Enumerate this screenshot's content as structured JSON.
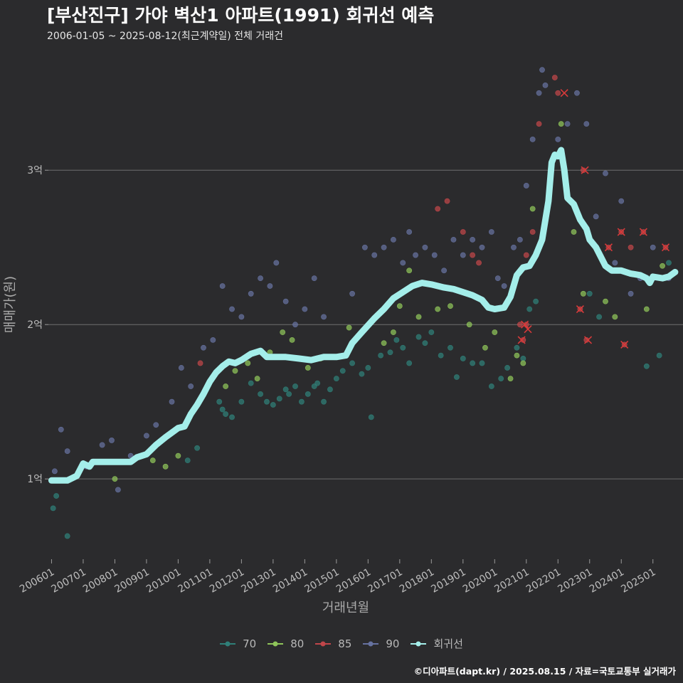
{
  "header": {
    "title": "[부산진구] 가야 벽산1 아파트(1991) 회귀선 예측",
    "subtitle": "2006-01-05 ~ 2025-08-12(최근계약일) 전체 거래건"
  },
  "caption": "©디아파트(dapt.kr) / 2025.08.15 / 자료=국토교통부 실거래가",
  "colors": {
    "background": "#2b2b2d",
    "grid": "#6e6e6e",
    "s70": "#2f7f78",
    "s80": "#8fc55a",
    "s85": "#c0464a",
    "s90": "#6672a0",
    "trend": "#a4eeea",
    "cancel_mark": "#d83a3a"
  },
  "chart_data": {
    "type": "scatter",
    "xlabel": "거래년월",
    "ylabel": "매매가(원)",
    "xlim": [
      2005.9,
      2025.95
    ],
    "ylim": [
      0.48,
      3.78
    ],
    "y_unit": "억",
    "yticks": [
      {
        "value": 1,
        "label": "1억"
      },
      {
        "value": 2,
        "label": "2억"
      },
      {
        "value": 3,
        "label": "3억"
      }
    ],
    "xticks": [
      {
        "value": 2006.0,
        "label": "200601"
      },
      {
        "value": 2007.0,
        "label": "200701"
      },
      {
        "value": 2008.0,
        "label": "200801"
      },
      {
        "value": 2009.0,
        "label": "200901"
      },
      {
        "value": 2010.0,
        "label": "201001"
      },
      {
        "value": 2011.0,
        "label": "201101"
      },
      {
        "value": 2012.0,
        "label": "201201"
      },
      {
        "value": 2013.0,
        "label": "201301"
      },
      {
        "value": 2014.0,
        "label": "201401"
      },
      {
        "value": 2015.0,
        "label": "201501"
      },
      {
        "value": 2016.0,
        "label": "201601"
      },
      {
        "value": 2017.0,
        "label": "201701"
      },
      {
        "value": 2018.0,
        "label": "201801"
      },
      {
        "value": 2019.0,
        "label": "201901"
      },
      {
        "value": 2020.0,
        "label": "202001"
      },
      {
        "value": 2021.0,
        "label": "202101"
      },
      {
        "value": 2022.0,
        "label": "202201"
      },
      {
        "value": 2023.0,
        "label": "202301"
      },
      {
        "value": 2024.0,
        "label": "202401"
      },
      {
        "value": 2025.0,
        "label": "202501"
      }
    ],
    "grid": true,
    "legend_position": "bottom",
    "legend": [
      "70",
      "80",
      "85",
      "90",
      "회귀선"
    ],
    "series": [
      {
        "name": "70",
        "points": [
          [
            2006.05,
            0.81
          ],
          [
            2006.15,
            0.89
          ],
          [
            2006.5,
            0.63
          ],
          [
            2010.3,
            1.12
          ],
          [
            2010.6,
            1.2
          ],
          [
            2011.3,
            1.5
          ],
          [
            2011.4,
            1.45
          ],
          [
            2011.5,
            1.42
          ],
          [
            2011.7,
            1.4
          ],
          [
            2012.0,
            1.5
          ],
          [
            2012.3,
            1.62
          ],
          [
            2012.6,
            1.55
          ],
          [
            2012.8,
            1.5
          ],
          [
            2013.0,
            1.48
          ],
          [
            2013.2,
            1.52
          ],
          [
            2013.4,
            1.58
          ],
          [
            2013.5,
            1.55
          ],
          [
            2013.7,
            1.6
          ],
          [
            2013.9,
            1.5
          ],
          [
            2014.1,
            1.55
          ],
          [
            2014.3,
            1.6
          ],
          [
            2014.4,
            1.62
          ],
          [
            2014.6,
            1.5
          ],
          [
            2014.8,
            1.58
          ],
          [
            2015.0,
            1.65
          ],
          [
            2015.2,
            1.7
          ],
          [
            2015.5,
            1.75
          ],
          [
            2015.8,
            1.68
          ],
          [
            2016.0,
            1.72
          ],
          [
            2016.1,
            1.4
          ],
          [
            2016.4,
            1.8
          ],
          [
            2016.7,
            1.82
          ],
          [
            2016.9,
            1.9
          ],
          [
            2017.1,
            1.85
          ],
          [
            2017.3,
            1.75
          ],
          [
            2017.6,
            1.92
          ],
          [
            2017.8,
            1.88
          ],
          [
            2018.0,
            1.95
          ],
          [
            2018.3,
            1.8
          ],
          [
            2018.6,
            1.85
          ],
          [
            2018.8,
            1.66
          ],
          [
            2019.0,
            1.78
          ],
          [
            2019.3,
            1.75
          ],
          [
            2019.6,
            1.75
          ],
          [
            2019.9,
            1.6
          ],
          [
            2020.2,
            1.65
          ],
          [
            2020.4,
            1.72
          ],
          [
            2020.7,
            1.85
          ],
          [
            2020.9,
            1.78
          ],
          [
            2021.1,
            2.1
          ],
          [
            2021.3,
            2.15
          ],
          [
            2023.0,
            2.2
          ],
          [
            2023.3,
            2.05
          ],
          [
            2024.8,
            1.73
          ],
          [
            2025.2,
            1.8
          ],
          [
            2025.5,
            2.4
          ]
        ]
      },
      {
        "name": "80",
        "points": [
          [
            2008.0,
            1.0
          ],
          [
            2009.2,
            1.12
          ],
          [
            2009.6,
            1.08
          ],
          [
            2010.0,
            1.15
          ],
          [
            2011.5,
            1.6
          ],
          [
            2011.8,
            1.7
          ],
          [
            2012.2,
            1.75
          ],
          [
            2012.5,
            1.65
          ],
          [
            2012.9,
            1.82
          ],
          [
            2013.3,
            1.95
          ],
          [
            2013.6,
            1.9
          ],
          [
            2014.1,
            1.72
          ],
          [
            2014.5,
            1.78
          ],
          [
            2015.4,
            1.98
          ],
          [
            2016.5,
            1.88
          ],
          [
            2016.8,
            1.95
          ],
          [
            2017.0,
            2.12
          ],
          [
            2017.3,
            2.35
          ],
          [
            2017.6,
            2.05
          ],
          [
            2018.2,
            2.1
          ],
          [
            2018.6,
            2.12
          ],
          [
            2019.2,
            2.0
          ],
          [
            2019.7,
            1.85
          ],
          [
            2020.0,
            1.95
          ],
          [
            2020.5,
            1.65
          ],
          [
            2020.7,
            1.8
          ],
          [
            2020.9,
            1.75
          ],
          [
            2021.2,
            2.75
          ],
          [
            2021.4,
            2.5
          ],
          [
            2022.1,
            3.3
          ],
          [
            2022.5,
            2.6
          ],
          [
            2022.8,
            2.2
          ],
          [
            2023.5,
            2.15
          ],
          [
            2023.8,
            2.05
          ],
          [
            2024.8,
            2.1
          ],
          [
            2025.3,
            2.38
          ]
        ]
      },
      {
        "name": "85",
        "points": [
          [
            2010.7,
            1.75
          ],
          [
            2018.2,
            2.75
          ],
          [
            2018.5,
            2.8
          ],
          [
            2019.0,
            2.6
          ],
          [
            2019.3,
            2.45
          ],
          [
            2019.5,
            2.4
          ],
          [
            2020.8,
            2.0
          ],
          [
            2020.9,
            1.9
          ],
          [
            2021.0,
            2.0
          ],
          [
            2021.0,
            2.45
          ],
          [
            2021.2,
            2.6
          ],
          [
            2021.4,
            3.3
          ],
          [
            2021.9,
            3.6
          ],
          [
            2022.0,
            3.5
          ],
          [
            2022.7,
            2.1
          ],
          [
            2022.8,
            3.0
          ],
          [
            2022.9,
            1.9
          ],
          [
            2023.6,
            2.5
          ],
          [
            2024.0,
            2.6
          ],
          [
            2024.3,
            2.5
          ],
          [
            2024.1,
            1.87
          ],
          [
            2024.7,
            2.6
          ],
          [
            2025.4,
            2.5
          ]
        ]
      },
      {
        "name": "90",
        "points": [
          [
            2006.1,
            1.05
          ],
          [
            2006.3,
            1.32
          ],
          [
            2006.5,
            1.18
          ],
          [
            2007.1,
            1.08
          ],
          [
            2007.6,
            1.22
          ],
          [
            2007.9,
            1.25
          ],
          [
            2008.1,
            0.93
          ],
          [
            2008.5,
            1.15
          ],
          [
            2009.0,
            1.28
          ],
          [
            2009.3,
            1.35
          ],
          [
            2009.8,
            1.5
          ],
          [
            2010.1,
            1.72
          ],
          [
            2010.4,
            1.6
          ],
          [
            2010.8,
            1.85
          ],
          [
            2011.1,
            1.9
          ],
          [
            2011.4,
            2.25
          ],
          [
            2011.7,
            2.1
          ],
          [
            2012.0,
            2.05
          ],
          [
            2012.3,
            2.2
          ],
          [
            2012.6,
            2.3
          ],
          [
            2012.9,
            2.25
          ],
          [
            2013.1,
            2.4
          ],
          [
            2013.4,
            2.15
          ],
          [
            2013.7,
            2.0
          ],
          [
            2014.0,
            2.1
          ],
          [
            2014.3,
            2.3
          ],
          [
            2014.6,
            2.05
          ],
          [
            2015.5,
            2.2
          ],
          [
            2015.9,
            2.5
          ],
          [
            2016.2,
            2.45
          ],
          [
            2016.5,
            2.5
          ],
          [
            2016.8,
            2.55
          ],
          [
            2017.1,
            2.4
          ],
          [
            2017.3,
            2.6
          ],
          [
            2017.5,
            2.45
          ],
          [
            2017.8,
            2.5
          ],
          [
            2018.1,
            2.45
          ],
          [
            2018.4,
            2.35
          ],
          [
            2018.7,
            2.55
          ],
          [
            2019.0,
            2.45
          ],
          [
            2019.3,
            2.55
          ],
          [
            2019.6,
            2.5
          ],
          [
            2019.9,
            2.6
          ],
          [
            2020.1,
            2.3
          ],
          [
            2020.3,
            2.25
          ],
          [
            2020.6,
            2.5
          ],
          [
            2020.8,
            2.55
          ],
          [
            2021.0,
            2.9
          ],
          [
            2021.2,
            3.2
          ],
          [
            2021.4,
            3.5
          ],
          [
            2021.5,
            3.65
          ],
          [
            2021.6,
            3.55
          ],
          [
            2022.0,
            3.2
          ],
          [
            2022.3,
            3.3
          ],
          [
            2022.6,
            3.5
          ],
          [
            2022.9,
            3.3
          ],
          [
            2023.2,
            2.7
          ],
          [
            2023.5,
            2.98
          ],
          [
            2023.8,
            2.4
          ],
          [
            2024.0,
            2.8
          ],
          [
            2024.3,
            2.2
          ],
          [
            2024.6,
            2.3
          ],
          [
            2025.0,
            2.5
          ],
          [
            2025.5,
            2.3
          ]
        ]
      }
    ],
    "cancelled_points": [
      [
        2020.95,
        2.0
      ],
      [
        2021.05,
        1.97
      ],
      [
        2020.85,
        1.9
      ],
      [
        2022.2,
        3.5
      ],
      [
        2022.7,
        2.1
      ],
      [
        2022.85,
        3.0
      ],
      [
        2022.95,
        1.9
      ],
      [
        2023.6,
        2.5
      ],
      [
        2024.0,
        2.6
      ],
      [
        2024.1,
        1.87
      ],
      [
        2024.7,
        2.6
      ],
      [
        2025.4,
        2.5
      ]
    ],
    "trend": {
      "name": "회귀선",
      "points": [
        [
          2006.0,
          0.99
        ],
        [
          2006.5,
          0.99
        ],
        [
          2006.8,
          1.02
        ],
        [
          2007.0,
          1.1
        ],
        [
          2007.2,
          1.08
        ],
        [
          2007.3,
          1.11
        ],
        [
          2008.0,
          1.11
        ],
        [
          2008.5,
          1.11
        ],
        [
          2008.7,
          1.14
        ],
        [
          2009.0,
          1.16
        ],
        [
          2009.3,
          1.22
        ],
        [
          2009.6,
          1.27
        ],
        [
          2009.8,
          1.3
        ],
        [
          2010.0,
          1.33
        ],
        [
          2010.2,
          1.34
        ],
        [
          2010.4,
          1.42
        ],
        [
          2010.6,
          1.48
        ],
        [
          2010.8,
          1.55
        ],
        [
          2011.0,
          1.63
        ],
        [
          2011.2,
          1.69
        ],
        [
          2011.4,
          1.73
        ],
        [
          2011.6,
          1.76
        ],
        [
          2011.8,
          1.75
        ],
        [
          2012.0,
          1.77
        ],
        [
          2012.3,
          1.81
        ],
        [
          2012.6,
          1.83
        ],
        [
          2012.8,
          1.79
        ],
        [
          2013.0,
          1.79
        ],
        [
          2013.4,
          1.79
        ],
        [
          2013.8,
          1.78
        ],
        [
          2014.2,
          1.77
        ],
        [
          2014.6,
          1.79
        ],
        [
          2015.0,
          1.79
        ],
        [
          2015.3,
          1.8
        ],
        [
          2015.5,
          1.88
        ],
        [
          2015.8,
          1.95
        ],
        [
          2016.2,
          2.04
        ],
        [
          2016.5,
          2.1
        ],
        [
          2016.8,
          2.17
        ],
        [
          2017.1,
          2.21
        ],
        [
          2017.4,
          2.25
        ],
        [
          2017.7,
          2.27
        ],
        [
          2018.0,
          2.26
        ],
        [
          2018.4,
          2.24
        ],
        [
          2018.7,
          2.23
        ],
        [
          2019.0,
          2.21
        ],
        [
          2019.3,
          2.19
        ],
        [
          2019.6,
          2.16
        ],
        [
          2019.8,
          2.11
        ],
        [
          2020.0,
          2.1
        ],
        [
          2020.3,
          2.11
        ],
        [
          2020.5,
          2.18
        ],
        [
          2020.7,
          2.32
        ],
        [
          2020.9,
          2.37
        ],
        [
          2021.1,
          2.38
        ],
        [
          2021.3,
          2.45
        ],
        [
          2021.5,
          2.55
        ],
        [
          2021.7,
          2.8
        ],
        [
          2021.8,
          3.05
        ],
        [
          2021.9,
          3.1
        ],
        [
          2022.0,
          3.09
        ],
        [
          2022.1,
          3.13
        ],
        [
          2022.2,
          3.0
        ],
        [
          2022.3,
          2.82
        ],
        [
          2022.5,
          2.78
        ],
        [
          2022.7,
          2.68
        ],
        [
          2022.9,
          2.62
        ],
        [
          2023.0,
          2.55
        ],
        [
          2023.2,
          2.5
        ],
        [
          2023.5,
          2.38
        ],
        [
          2023.7,
          2.35
        ],
        [
          2024.0,
          2.35
        ],
        [
          2024.3,
          2.33
        ],
        [
          2024.6,
          2.32
        ],
        [
          2024.8,
          2.3
        ],
        [
          2024.9,
          2.27
        ],
        [
          2025.0,
          2.31
        ],
        [
          2025.3,
          2.3
        ],
        [
          2025.5,
          2.31
        ],
        [
          2025.7,
          2.34
        ]
      ]
    }
  }
}
